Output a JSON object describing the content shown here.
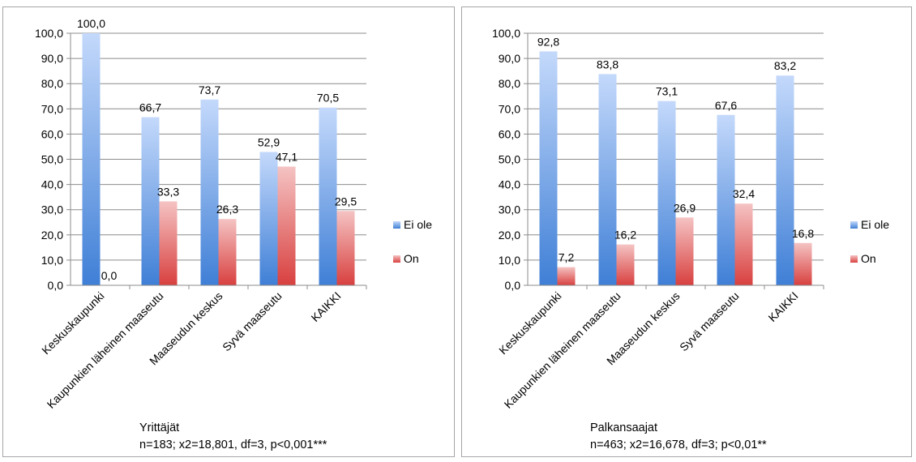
{
  "chart_data": [
    {
      "type": "bar",
      "categories": [
        "Keskuskaupunki",
        "Kaupunkien läheinen maaseutu",
        "Maaseudun keskus",
        "Syvä maaseutu",
        "KAIKKI"
      ],
      "series": [
        {
          "name": "Ei ole",
          "values": [
            100.0,
            66.7,
            73.7,
            52.9,
            70.5
          ],
          "labels": [
            "100,0",
            "66,7",
            "73,7",
            "52,9",
            "70,5"
          ]
        },
        {
          "name": "On",
          "values": [
            0.0,
            33.3,
            26.3,
            47.1,
            29.5
          ],
          "labels": [
            "0,0",
            "33,3",
            "26,3",
            "47,1",
            "29,5"
          ]
        }
      ],
      "ylim": [
        0,
        100
      ],
      "yticks": [
        "0,0",
        "10,0",
        "20,0",
        "30,0",
        "40,0",
        "50,0",
        "60,0",
        "70,0",
        "80,0",
        "90,0",
        "100,0"
      ],
      "grid": true,
      "legend": "right",
      "caption_title": "Yrittäjät",
      "caption_stats": "n=183; x2=18,801, df=3, p<0,001***"
    },
    {
      "type": "bar",
      "categories": [
        "Keskuskaupunki",
        "Kaupunkien läheinen maaseutu",
        "Maaseudun keskus",
        "Syvä maaseutu",
        "KAIKKI"
      ],
      "series": [
        {
          "name": "Ei ole",
          "values": [
            92.8,
            83.8,
            73.1,
            67.6,
            83.2
          ],
          "labels": [
            "92,8",
            "83,8",
            "73,1",
            "67,6",
            "83,2"
          ]
        },
        {
          "name": "On",
          "values": [
            7.2,
            16.2,
            26.9,
            32.4,
            16.8
          ],
          "labels": [
            "7,2",
            "16,2",
            "26,9",
            "32,4",
            "16,8"
          ]
        }
      ],
      "ylim": [
        0,
        100
      ],
      "yticks": [
        "0,0",
        "10,0",
        "20,0",
        "30,0",
        "40,0",
        "50,0",
        "60,0",
        "70,0",
        "80,0",
        "90,0",
        "100,0"
      ],
      "grid": true,
      "legend": "right",
      "caption_title": "Palkansaajat",
      "caption_stats": "n=463; x2=16,678, df=3; p<0,01**"
    }
  ],
  "colors": {
    "ei_ole_top": "#c4d9fb",
    "ei_ole_bottom": "#3f7fd6",
    "on_top": "#f5c3c3",
    "on_bottom": "#d8403f",
    "grid": "#8c8c8c"
  }
}
